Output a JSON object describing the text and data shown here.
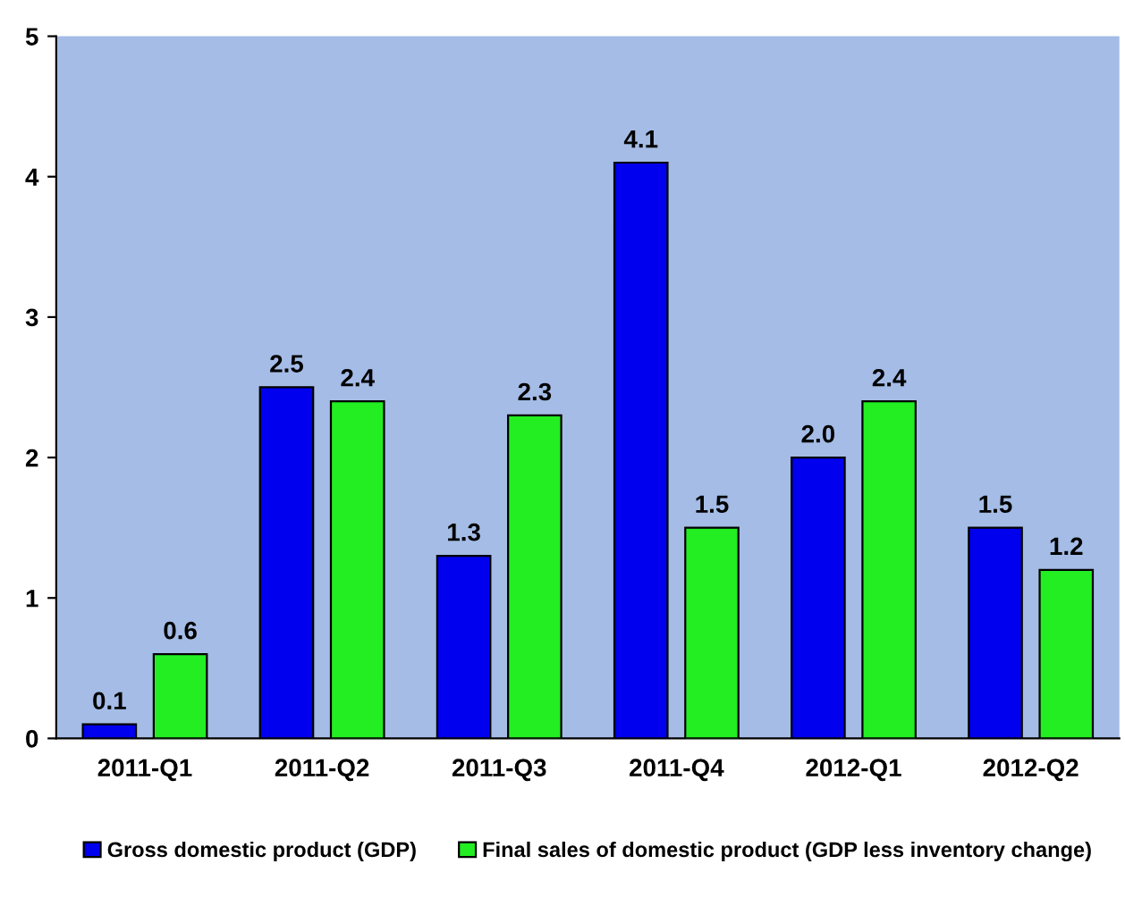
{
  "chart_data": {
    "type": "bar",
    "categories": [
      "2011-Q1",
      "2011-Q2",
      "2011-Q3",
      "2011-Q4",
      "2012-Q1",
      "2012-Q2"
    ],
    "series": [
      {
        "name": "Gross domestic product (GDP)",
        "color": "#0000ee",
        "values": [
          0.1,
          2.5,
          1.3,
          4.1,
          2.0,
          1.5
        ],
        "value_labels": [
          "0.1",
          "2.5",
          "1.3",
          "4.1",
          "2.0",
          "1.5"
        ]
      },
      {
        "name": "Final sales of domestic product (GDP less inventory change)",
        "color": "#22ee22",
        "values": [
          0.6,
          2.4,
          2.3,
          1.5,
          2.4,
          1.2
        ],
        "value_labels": [
          "0.6",
          "2.4",
          "2.3",
          "1.5",
          "2.4",
          "1.2"
        ]
      }
    ],
    "ylim": [
      0,
      5
    ],
    "yticks": [
      0,
      1,
      2,
      3,
      4,
      5
    ],
    "grid": false,
    "legend": "bottom"
  }
}
